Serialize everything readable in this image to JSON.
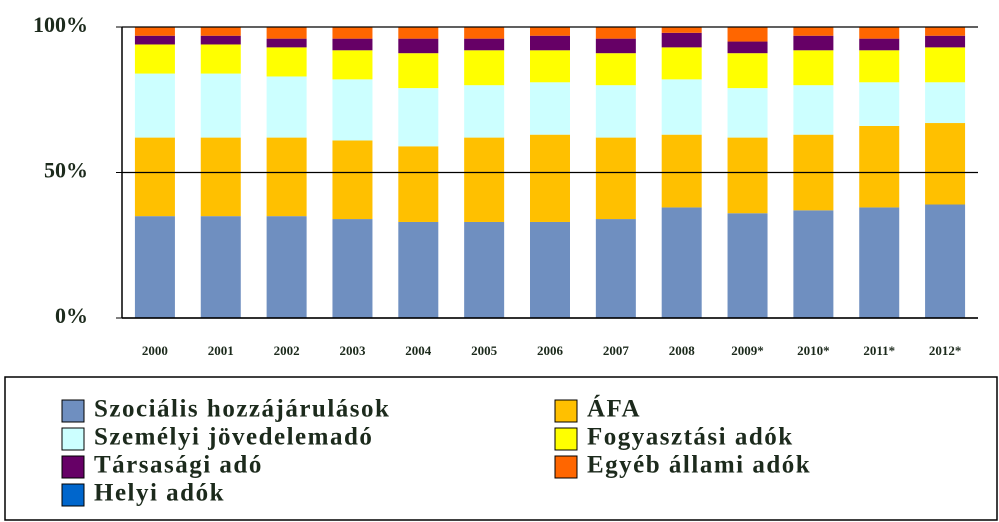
{
  "chart_data": {
    "type": "stacked_bar",
    "categories": [
      "2000",
      "2001",
      "2002",
      "2003",
      "2004",
      "2005",
      "2006",
      "2007",
      "2008",
      "2009*",
      "2010*",
      "2011*",
      "2012*"
    ],
    "series": [
      {
        "name": "Szociális hozzájárulások",
        "color": "#6f8fc0",
        "values": [
          35,
          35,
          35,
          34,
          33,
          33,
          33,
          34,
          38,
          36,
          37,
          38,
          39
        ]
      },
      {
        "name": "ÁFA",
        "color": "#ffc000",
        "values": [
          27,
          27,
          27,
          27,
          26,
          29,
          30,
          28,
          25,
          26,
          26,
          28,
          28
        ]
      },
      {
        "name": "Személyi jövedelemadó",
        "color": "#ccffff",
        "values": [
          22,
          22,
          21,
          21,
          20,
          18,
          18,
          18,
          19,
          17,
          17,
          15,
          14
        ]
      },
      {
        "name": "Fogyasztási adók",
        "color": "#ffff00",
        "values": [
          10,
          10,
          10,
          10,
          12,
          12,
          11,
          11,
          11,
          12,
          12,
          11,
          12
        ]
      },
      {
        "name": "Társasági adó",
        "color": "#660066",
        "values": [
          3,
          3,
          3,
          4,
          5,
          4,
          5,
          5,
          5,
          4,
          5,
          4,
          4
        ]
      },
      {
        "name": "Egyéb állami adók",
        "color": "#ff6600",
        "values": [
          3,
          3,
          4,
          4,
          4,
          4,
          3,
          4,
          2,
          5,
          3,
          4,
          3
        ]
      },
      {
        "name": "Helyi adók",
        "color": "#0066cc",
        "values": [
          0,
          0,
          0,
          0,
          0,
          0,
          0,
          0,
          0,
          0,
          0,
          0,
          0
        ]
      }
    ],
    "ylim": [
      0,
      100
    ],
    "yticks": [
      {
        "value": 0,
        "label": "0%"
      },
      {
        "value": 50,
        "label": "50%"
      },
      {
        "value": 100,
        "label": "100%"
      }
    ],
    "grid": true
  }
}
